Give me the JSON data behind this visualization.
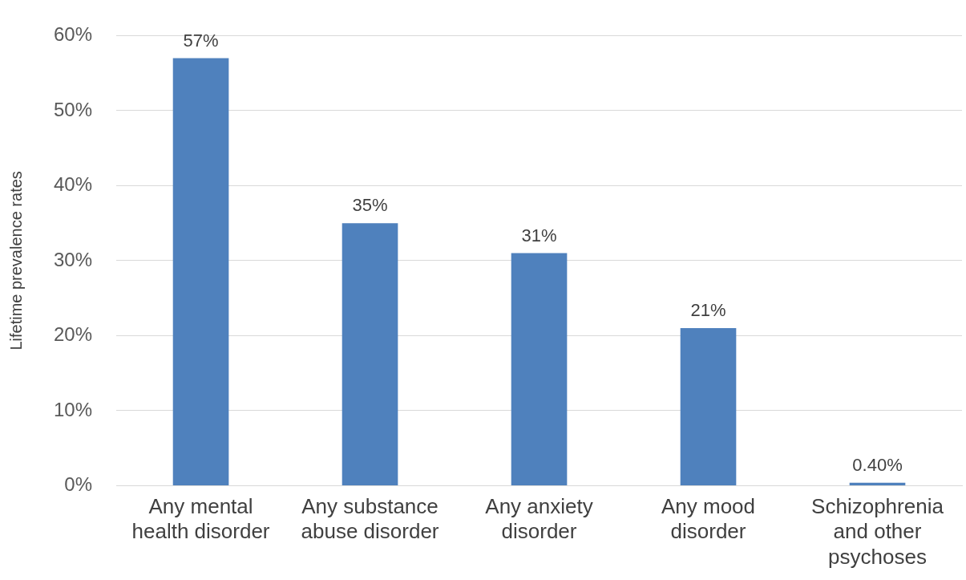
{
  "chart_data": {
    "type": "bar",
    "ylabel": "Lifetime prevalence rates",
    "categories": [
      "Any mental health disorder",
      "Any substance abuse disorder",
      "Any anxiety disorder",
      "Any mood disorder",
      "Schizophrenia and other psychoses"
    ],
    "values": [
      57,
      35,
      31,
      21,
      0.4
    ],
    "color": "#4f81bd",
    "value_labels": [
      "57%",
      "35%",
      "31%",
      "21%",
      "0.40%"
    ],
    "ylim": [
      0,
      60
    ],
    "yticks": [
      {
        "value": 0,
        "label": "0%"
      },
      {
        "value": 10,
        "label": "10%"
      },
      {
        "value": 20,
        "label": "20%"
      },
      {
        "value": 30,
        "label": "30%"
      },
      {
        "value": 40,
        "label": "40%"
      },
      {
        "value": 50,
        "label": "50%"
      },
      {
        "value": 60,
        "label": "60%"
      }
    ],
    "grid": "y",
    "legend": false
  }
}
